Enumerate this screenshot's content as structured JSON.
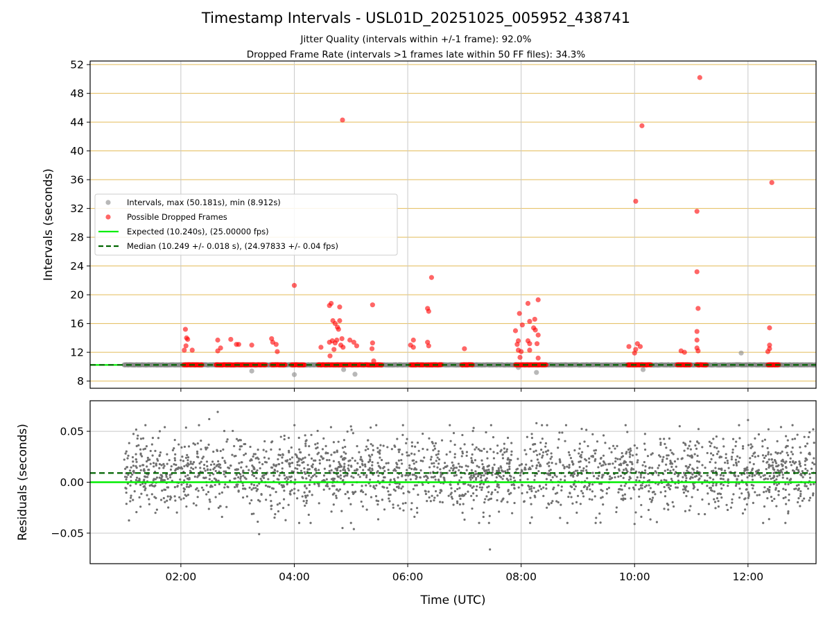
{
  "figure": {
    "title": "Timestamp Intervals - USL01D_20251025_005952_438741",
    "subtitle_jitter": "Jitter Quality (intervals within +/-1 frame): 92.0%",
    "subtitle_dropped": "Dropped Frame Rate (intervals >1 frames late within 50 FF files): 34.3%"
  },
  "colors": {
    "intervals": "#888888",
    "dropped": "#ff0000",
    "expected": "#00ee00",
    "median": "#006400",
    "hgrid": "#daa520",
    "vgrid": "#c8c8c8",
    "residuals": "#707070"
  },
  "chart_data": [
    {
      "type": "scatter",
      "panel": "top",
      "ylabel": "Intervals (seconds)",
      "xlabel": "",
      "xlim": [
        0.4,
        13.2
      ],
      "ylim": [
        7,
        52.5
      ],
      "yticks": [
        8,
        12,
        16,
        20,
        24,
        28,
        32,
        36,
        40,
        44,
        48,
        52
      ],
      "legend_position": "center-left",
      "legend": [
        {
          "label": "Intervals, max (50.181s), min (8.912s)",
          "kind": "marker",
          "color_key": "intervals"
        },
        {
          "label": "Possible Dropped Frames",
          "kind": "marker",
          "color_key": "dropped"
        },
        {
          "label": "Expected (10.240s), (25.00000 fps)",
          "kind": "line",
          "color_key": "expected"
        },
        {
          "label": "Median (10.249 +/- 0.018 s), (24.97833 +/- 0.04 fps)",
          "kind": "dashed",
          "color_key": "median"
        }
      ],
      "expected": 10.24,
      "median": 10.249,
      "intervals_band": {
        "x_start": 1.0,
        "x_end": 13.2,
        "value": 10.25
      },
      "intervals_outliers": [
        {
          "x": 3.25,
          "y": 9.4
        },
        {
          "x": 4.0,
          "y": 8.9
        },
        {
          "x": 4.87,
          "y": 9.6
        },
        {
          "x": 5.07,
          "y": 8.95
        },
        {
          "x": 7.95,
          "y": 9.9
        },
        {
          "x": 8.27,
          "y": 9.2
        },
        {
          "x": 10.15,
          "y": 9.6
        },
        {
          "x": 11.88,
          "y": 11.9
        }
      ],
      "dropped_clusters": [
        {
          "start": 2.05,
          "end": 2.38
        },
        {
          "start": 2.62,
          "end": 3.2
        },
        {
          "start": 3.22,
          "end": 3.5
        },
        {
          "start": 3.6,
          "end": 3.85
        },
        {
          "start": 3.95,
          "end": 4.18
        },
        {
          "start": 4.42,
          "end": 5.2
        },
        {
          "start": 5.22,
          "end": 5.55
        },
        {
          "start": 6.05,
          "end": 6.28
        },
        {
          "start": 6.32,
          "end": 6.6
        },
        {
          "start": 6.95,
          "end": 7.15
        },
        {
          "start": 7.9,
          "end": 8.45
        },
        {
          "start": 9.88,
          "end": 10.3
        },
        {
          "start": 10.75,
          "end": 10.98
        },
        {
          "start": 11.1,
          "end": 11.28
        },
        {
          "start": 12.35,
          "end": 12.55
        }
      ],
      "dropped_points": [
        {
          "x": 2.08,
          "y": 15.2
        },
        {
          "x": 2.1,
          "y": 14.0
        },
        {
          "x": 2.12,
          "y": 13.8
        },
        {
          "x": 2.09,
          "y": 12.9
        },
        {
          "x": 2.06,
          "y": 12.3
        },
        {
          "x": 2.2,
          "y": 12.3
        },
        {
          "x": 2.65,
          "y": 13.7
        },
        {
          "x": 2.7,
          "y": 12.6
        },
        {
          "x": 2.65,
          "y": 12.2
        },
        {
          "x": 2.88,
          "y": 13.8
        },
        {
          "x": 2.98,
          "y": 13.1
        },
        {
          "x": 3.02,
          "y": 13.1
        },
        {
          "x": 3.25,
          "y": 13.0
        },
        {
          "x": 3.6,
          "y": 13.9
        },
        {
          "x": 3.62,
          "y": 13.4
        },
        {
          "x": 3.68,
          "y": 13.1
        },
        {
          "x": 3.7,
          "y": 12.1
        },
        {
          "x": 4.0,
          "y": 21.3
        },
        {
          "x": 4.47,
          "y": 12.7
        },
        {
          "x": 4.62,
          "y": 18.5
        },
        {
          "x": 4.65,
          "y": 18.8
        },
        {
          "x": 4.8,
          "y": 18.3
        },
        {
          "x": 4.68,
          "y": 16.4
        },
        {
          "x": 4.72,
          "y": 16.0
        },
        {
          "x": 4.76,
          "y": 15.5
        },
        {
          "x": 4.8,
          "y": 16.4
        },
        {
          "x": 4.78,
          "y": 15.2
        },
        {
          "x": 4.62,
          "y": 13.4
        },
        {
          "x": 4.67,
          "y": 13.6
        },
        {
          "x": 4.72,
          "y": 13.3
        },
        {
          "x": 4.75,
          "y": 13.7
        },
        {
          "x": 4.84,
          "y": 13.9
        },
        {
          "x": 4.82,
          "y": 13.0
        },
        {
          "x": 4.86,
          "y": 12.7
        },
        {
          "x": 4.63,
          "y": 11.5
        },
        {
          "x": 4.7,
          "y": 12.4
        },
        {
          "x": 4.85,
          "y": 44.3
        },
        {
          "x": 4.98,
          "y": 13.7
        },
        {
          "x": 5.05,
          "y": 13.4
        },
        {
          "x": 5.1,
          "y": 12.9
        },
        {
          "x": 5.38,
          "y": 18.6
        },
        {
          "x": 5.38,
          "y": 13.3
        },
        {
          "x": 5.37,
          "y": 12.5
        },
        {
          "x": 5.4,
          "y": 10.8
        },
        {
          "x": 6.05,
          "y": 13.0
        },
        {
          "x": 6.1,
          "y": 13.7
        },
        {
          "x": 6.1,
          "y": 12.7
        },
        {
          "x": 6.35,
          "y": 18.1
        },
        {
          "x": 6.37,
          "y": 17.7
        },
        {
          "x": 6.35,
          "y": 13.4
        },
        {
          "x": 6.37,
          "y": 12.9
        },
        {
          "x": 6.42,
          "y": 22.4
        },
        {
          "x": 7.0,
          "y": 12.5
        },
        {
          "x": 7.9,
          "y": 15.0
        },
        {
          "x": 7.97,
          "y": 17.4
        },
        {
          "x": 7.95,
          "y": 13.6
        },
        {
          "x": 7.93,
          "y": 13.1
        },
        {
          "x": 7.95,
          "y": 12.3
        },
        {
          "x": 8.0,
          "y": 12.1
        },
        {
          "x": 7.98,
          "y": 11.3
        },
        {
          "x": 8.02,
          "y": 15.8
        },
        {
          "x": 8.12,
          "y": 18.8
        },
        {
          "x": 8.12,
          "y": 13.6
        },
        {
          "x": 8.15,
          "y": 13.2
        },
        {
          "x": 8.15,
          "y": 12.3
        },
        {
          "x": 8.15,
          "y": 16.3
        },
        {
          "x": 8.24,
          "y": 16.6
        },
        {
          "x": 8.22,
          "y": 15.4
        },
        {
          "x": 8.25,
          "y": 15.1
        },
        {
          "x": 8.28,
          "y": 13.2
        },
        {
          "x": 8.3,
          "y": 14.4
        },
        {
          "x": 8.3,
          "y": 11.2
        },
        {
          "x": 8.3,
          "y": 19.3
        },
        {
          "x": 9.9,
          "y": 12.8
        },
        {
          "x": 10.0,
          "y": 11.9
        },
        {
          "x": 10.02,
          "y": 12.4
        },
        {
          "x": 10.05,
          "y": 13.2
        },
        {
          "x": 10.1,
          "y": 12.8
        },
        {
          "x": 10.02,
          "y": 33.0
        },
        {
          "x": 10.13,
          "y": 43.5
        },
        {
          "x": 10.82,
          "y": 12.2
        },
        {
          "x": 10.88,
          "y": 12.0
        },
        {
          "x": 11.1,
          "y": 14.9
        },
        {
          "x": 11.1,
          "y": 13.7
        },
        {
          "x": 11.1,
          "y": 12.6
        },
        {
          "x": 11.12,
          "y": 12.2
        },
        {
          "x": 11.12,
          "y": 18.1
        },
        {
          "x": 11.1,
          "y": 23.2
        },
        {
          "x": 11.1,
          "y": 31.6
        },
        {
          "x": 11.15,
          "y": 50.2
        },
        {
          "x": 12.38,
          "y": 15.4
        },
        {
          "x": 12.38,
          "y": 13.0
        },
        {
          "x": 12.38,
          "y": 12.5
        },
        {
          "x": 12.35,
          "y": 12.1
        },
        {
          "x": 12.42,
          "y": 35.6
        }
      ]
    },
    {
      "type": "scatter",
      "panel": "bottom",
      "ylabel": "Residuals (seconds)",
      "xlabel": "Time (UTC)",
      "xlim": [
        0.4,
        13.2
      ],
      "ylim": [
        -0.08,
        0.08
      ],
      "yticks": [
        0.05,
        0.0,
        -0.05
      ],
      "ytick_labels": [
        "0.05",
        "0.00",
        "−0.05"
      ],
      "xticks": [
        2,
        4,
        6,
        8,
        10,
        12
      ],
      "xtick_labels": [
        "02:00",
        "04:00",
        "06:00",
        "08:00",
        "10:00",
        "12:00"
      ],
      "expected_residual": 0.0,
      "median_residual": 0.009,
      "residual_summary": {
        "x_start": 1.0,
        "x_end": 13.2,
        "count": 2400,
        "mean": 0.009,
        "std": 0.018
      },
      "residual_outliers": [
        {
          "x": 2.65,
          "y": 0.069
        },
        {
          "x": 2.5,
          "y": 0.062
        },
        {
          "x": 3.38,
          "y": -0.051
        },
        {
          "x": 7.45,
          "y": -0.066
        },
        {
          "x": 8.27,
          "y": 0.058
        },
        {
          "x": 10.0,
          "y": -0.041
        },
        {
          "x": 12.0,
          "y": 0.061
        },
        {
          "x": 4.85,
          "y": -0.045
        },
        {
          "x": 5.05,
          "y": -0.046
        }
      ]
    }
  ]
}
